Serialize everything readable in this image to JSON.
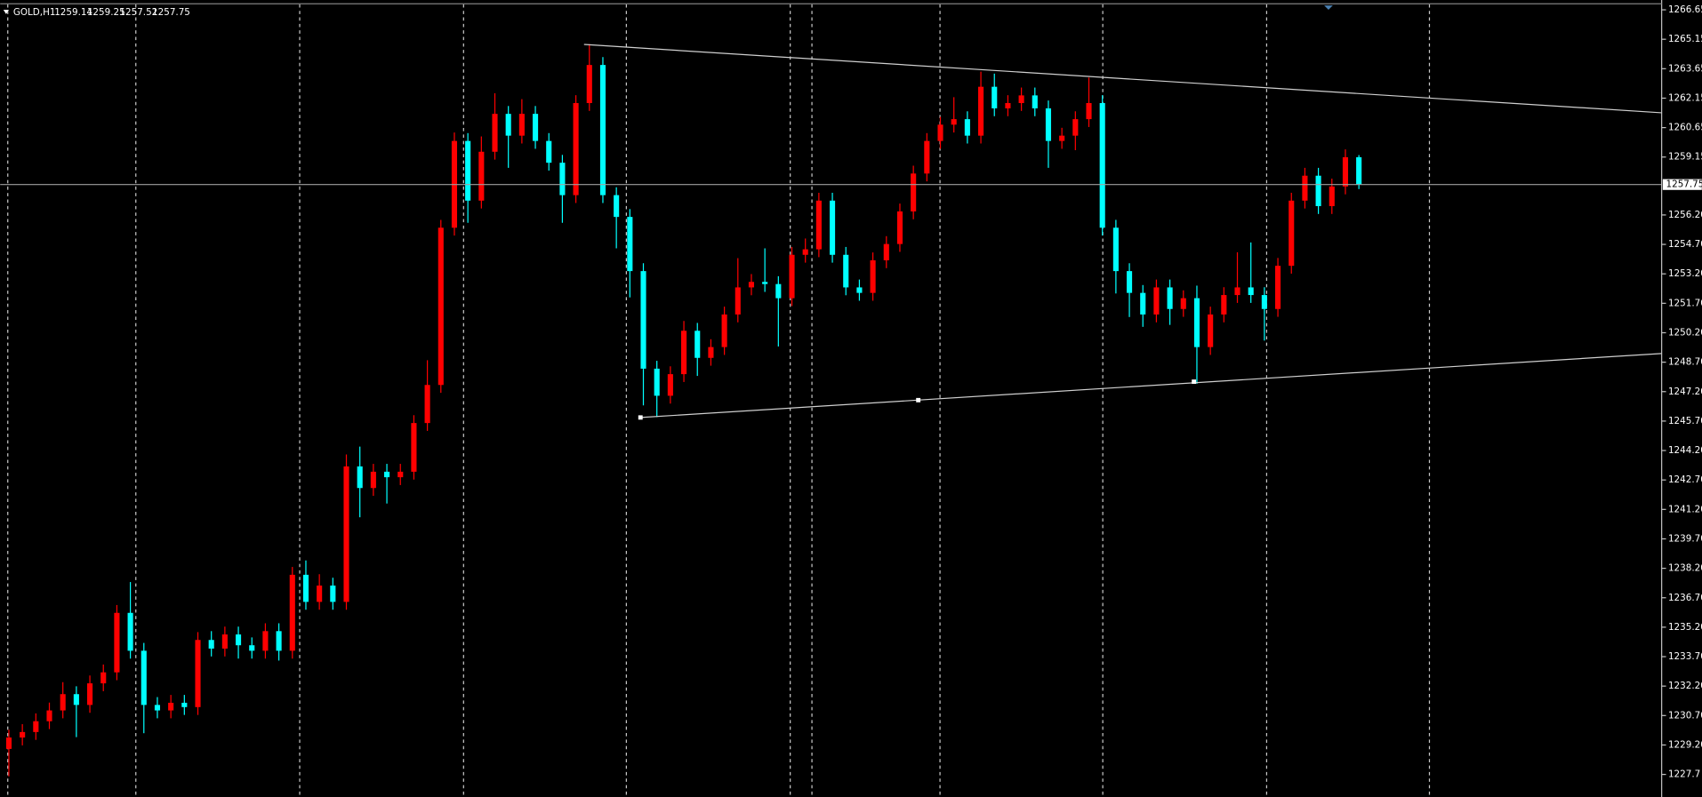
{
  "chart_data": {
    "type": "candlestick",
    "symbol": "GOLD,H1",
    "up_color": "#ff0000",
    "down_color": "#00ffff",
    "background": "#000000",
    "grid": true,
    "ylim": [
      1226.55,
      1267.15
    ],
    "yticks": [
      1266.65,
      1265.15,
      1263.65,
      1262.15,
      1260.65,
      1259.15,
      {
        "value": 1256.2,
        "label": "1256.20"
      },
      {
        "value": 1254.7,
        "label": "1254.70"
      },
      {
        "value": 1253.2,
        "label": "1253.20"
      },
      {
        "value": 1251.7,
        "label": "1251.70"
      },
      {
        "value": 1250.2,
        "label": "1250.20"
      },
      {
        "value": 1248.7,
        "label": "1248.70"
      },
      {
        "value": 1247.2,
        "label": "1247.20"
      },
      {
        "value": 1245.7,
        "label": "1245.70"
      },
      {
        "value": 1244.2,
        "label": "1244.20"
      },
      {
        "value": 1242.7,
        "label": "1242.70"
      },
      {
        "value": 1241.2,
        "label": "1241.20"
      },
      {
        "value": 1239.7,
        "label": "1239.70"
      },
      {
        "value": 1238.2,
        "label": "1238.20"
      },
      {
        "value": 1236.7,
        "label": "1236.70"
      },
      {
        "value": 1235.2,
        "label": "1235.20"
      },
      {
        "value": 1233.7,
        "label": "1233.70"
      },
      {
        "value": 1232.2,
        "label": "1232.20"
      },
      {
        "value": 1230.7,
        "label": "1230.70"
      },
      {
        "value": 1229.2,
        "label": "1229.20"
      },
      1227.7
    ],
    "open": [
      1229.0,
      1229.58,
      1229.86,
      1230.41,
      1230.96,
      1231.79,
      1231.24,
      1232.34,
      1232.9,
      1235.93,
      1234.0,
      1231.24,
      1230.96,
      1231.35,
      1231.13,
      1234.55,
      1234.11,
      1234.83,
      1234.28,
      1234.0,
      1235.0,
      1234.0,
      1237.87,
      1236.49,
      1237.32,
      1236.49,
      1243.39,
      1242.29,
      1243.12,
      1242.84,
      1243.12,
      1245.6,
      1247.54,
      1255.55,
      1259.97,
      1256.93,
      1259.42,
      1261.35,
      1260.24,
      1261.35,
      1259.97,
      1258.86,
      1257.21,
      1261.9,
      1263.84,
      1257.21,
      1256.1,
      1253.34,
      1248.37,
      1246.99,
      1248.09,
      1250.3,
      1248.92,
      1249.47,
      1251.13,
      1252.51,
      1252.79,
      1252.68,
      1251.96,
      1254.17,
      1254.45,
      1256.93,
      1254.17,
      1252.51,
      1252.23,
      1253.89,
      1254.72,
      1256.38,
      1258.31,
      1259.97,
      1260.8,
      1261.08,
      1260.24,
      1262.73,
      1261.63,
      1261.9,
      1262.29,
      1261.63,
      1259.97,
      1260.24,
      1261.08,
      1261.9,
      1255.55,
      1253.34,
      1252.23,
      1251.13,
      1252.51,
      1251.41,
      1251.96,
      1249.47,
      1251.13,
      1252.12,
      1252.51,
      1252.12,
      1251.41,
      1253.61,
      1256.93,
      1258.2,
      1256.65,
      1257.65,
      1259.14
    ],
    "high": [
      1229.98,
      1230.26,
      1230.81,
      1231.36,
      1232.4,
      1232.19,
      1232.74,
      1233.3,
      1236.33,
      1237.5,
      1234.4,
      1231.64,
      1231.75,
      1231.75,
      1234.95,
      1235.0,
      1235.23,
      1235.23,
      1234.68,
      1235.4,
      1235.4,
      1238.27,
      1238.6,
      1237.9,
      1237.72,
      1244.0,
      1244.4,
      1243.52,
      1243.52,
      1243.52,
      1246.0,
      1248.8,
      1255.95,
      1260.4,
      1260.37,
      1260.2,
      1262.4,
      1261.75,
      1262.1,
      1261.75,
      1260.37,
      1259.26,
      1262.3,
      1264.9,
      1264.24,
      1257.61,
      1256.5,
      1253.74,
      1248.77,
      1248.49,
      1250.8,
      1250.7,
      1249.87,
      1251.53,
      1254.0,
      1253.19,
      1254.5,
      1253.08,
      1254.57,
      1255.0,
      1257.33,
      1257.33,
      1254.57,
      1252.91,
      1254.29,
      1255.12,
      1256.78,
      1258.71,
      1260.37,
      1261.2,
      1262.2,
      1261.48,
      1263.5,
      1263.4,
      1262.3,
      1262.69,
      1262.69,
      1262.03,
      1260.64,
      1261.48,
      1263.2,
      1262.3,
      1255.95,
      1253.74,
      1252.63,
      1252.91,
      1252.91,
      1252.36,
      1252.6,
      1251.53,
      1252.52,
      1254.3,
      1254.8,
      1252.52,
      1254.01,
      1257.33,
      1258.6,
      1258.6,
      1258.05,
      1259.54,
      1259.25
    ],
    "low": [
      1227.6,
      1229.18,
      1229.46,
      1230.01,
      1230.56,
      1229.6,
      1230.84,
      1231.94,
      1232.5,
      1233.6,
      1229.8,
      1230.56,
      1230.56,
      1230.73,
      1230.73,
      1233.71,
      1233.71,
      1233.6,
      1233.6,
      1233.6,
      1233.5,
      1233.6,
      1236.09,
      1236.09,
      1236.09,
      1236.09,
      1240.8,
      1241.89,
      1241.5,
      1242.44,
      1242.72,
      1245.2,
      1247.14,
      1255.15,
      1255.8,
      1256.53,
      1259.02,
      1258.6,
      1259.84,
      1259.57,
      1258.46,
      1255.8,
      1256.81,
      1261.5,
      1256.81,
      1254.5,
      1252.0,
      1246.5,
      1245.9,
      1246.59,
      1247.69,
      1248.0,
      1248.52,
      1249.07,
      1250.73,
      1252.11,
      1252.28,
      1249.5,
      1251.56,
      1253.77,
      1254.05,
      1253.77,
      1252.11,
      1251.83,
      1251.83,
      1253.49,
      1254.32,
      1255.98,
      1257.91,
      1259.57,
      1260.4,
      1259.84,
      1259.84,
      1261.23,
      1261.23,
      1261.5,
      1261.23,
      1258.6,
      1259.57,
      1259.5,
      1260.68,
      1255.15,
      1252.2,
      1251.0,
      1250.5,
      1250.73,
      1250.6,
      1251.01,
      1247.6,
      1249.07,
      1250.73,
      1251.72,
      1251.72,
      1249.8,
      1251.01,
      1253.21,
      1256.53,
      1256.25,
      1256.25,
      1257.25,
      1257.52
    ],
    "close": [
      1229.58,
      1229.86,
      1230.41,
      1230.96,
      1231.79,
      1231.24,
      1232.34,
      1232.9,
      1235.93,
      1234.0,
      1231.24,
      1230.96,
      1231.35,
      1231.13,
      1234.55,
      1234.11,
      1234.83,
      1234.28,
      1234.0,
      1235.0,
      1234.0,
      1237.87,
      1236.49,
      1237.32,
      1236.49,
      1243.39,
      1242.29,
      1243.12,
      1242.84,
      1243.12,
      1245.6,
      1247.54,
      1255.55,
      1259.97,
      1256.93,
      1259.42,
      1261.35,
      1260.24,
      1261.35,
      1259.97,
      1258.86,
      1257.21,
      1261.9,
      1263.84,
      1257.21,
      1256.1,
      1253.34,
      1248.37,
      1246.99,
      1248.09,
      1250.3,
      1248.92,
      1249.47,
      1251.13,
      1252.51,
      1252.79,
      1252.68,
      1251.96,
      1254.17,
      1254.45,
      1256.93,
      1254.17,
      1252.51,
      1252.23,
      1253.89,
      1254.72,
      1256.38,
      1258.31,
      1259.97,
      1260.8,
      1261.08,
      1260.24,
      1262.73,
      1261.63,
      1261.9,
      1262.29,
      1261.63,
      1259.97,
      1260.24,
      1261.08,
      1261.9,
      1255.55,
      1253.34,
      1252.23,
      1251.13,
      1252.51,
      1251.41,
      1251.96,
      1249.47,
      1251.13,
      1252.12,
      1252.51,
      1252.12,
      1251.41,
      1253.61,
      1256.93,
      1258.2,
      1256.65,
      1257.65,
      1259.14,
      1257.75
    ]
  }
}
